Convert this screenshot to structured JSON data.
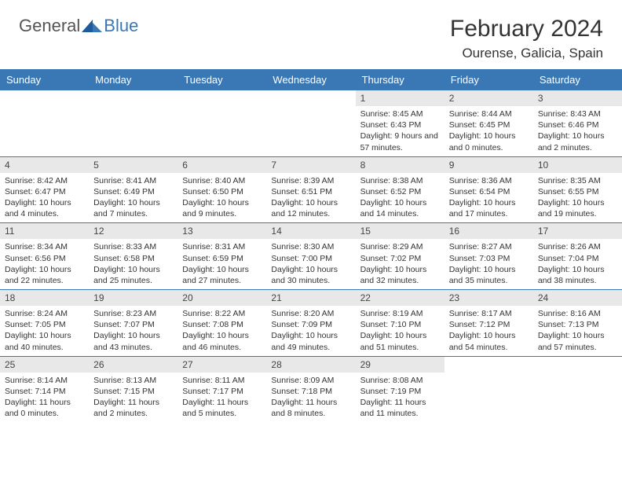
{
  "brand": {
    "part1": "General",
    "part2": "Blue"
  },
  "title": "February 2024",
  "location": "Ourense, Galicia, Spain",
  "colors": {
    "header_bg": "#3a78b5",
    "header_text": "#ffffff",
    "daynum_bg": "#e8e8e8",
    "text": "#333333",
    "border": "#3a78b5",
    "page_bg": "#ffffff"
  },
  "fonts": {
    "title_size": 30,
    "location_size": 17,
    "header_size": 13,
    "cell_size": 10.5
  },
  "weekdays": [
    "Sunday",
    "Monday",
    "Tuesday",
    "Wednesday",
    "Thursday",
    "Friday",
    "Saturday"
  ],
  "weeks": [
    [
      null,
      null,
      null,
      null,
      {
        "n": "1",
        "sr": "8:45 AM",
        "ss": "6:43 PM",
        "dl": "9 hours and 57 minutes."
      },
      {
        "n": "2",
        "sr": "8:44 AM",
        "ss": "6:45 PM",
        "dl": "10 hours and 0 minutes."
      },
      {
        "n": "3",
        "sr": "8:43 AM",
        "ss": "6:46 PM",
        "dl": "10 hours and 2 minutes."
      }
    ],
    [
      {
        "n": "4",
        "sr": "8:42 AM",
        "ss": "6:47 PM",
        "dl": "10 hours and 4 minutes."
      },
      {
        "n": "5",
        "sr": "8:41 AM",
        "ss": "6:49 PM",
        "dl": "10 hours and 7 minutes."
      },
      {
        "n": "6",
        "sr": "8:40 AM",
        "ss": "6:50 PM",
        "dl": "10 hours and 9 minutes."
      },
      {
        "n": "7",
        "sr": "8:39 AM",
        "ss": "6:51 PM",
        "dl": "10 hours and 12 minutes."
      },
      {
        "n": "8",
        "sr": "8:38 AM",
        "ss": "6:52 PM",
        "dl": "10 hours and 14 minutes."
      },
      {
        "n": "9",
        "sr": "8:36 AM",
        "ss": "6:54 PM",
        "dl": "10 hours and 17 minutes."
      },
      {
        "n": "10",
        "sr": "8:35 AM",
        "ss": "6:55 PM",
        "dl": "10 hours and 19 minutes."
      }
    ],
    [
      {
        "n": "11",
        "sr": "8:34 AM",
        "ss": "6:56 PM",
        "dl": "10 hours and 22 minutes."
      },
      {
        "n": "12",
        "sr": "8:33 AM",
        "ss": "6:58 PM",
        "dl": "10 hours and 25 minutes."
      },
      {
        "n": "13",
        "sr": "8:31 AM",
        "ss": "6:59 PM",
        "dl": "10 hours and 27 minutes."
      },
      {
        "n": "14",
        "sr": "8:30 AM",
        "ss": "7:00 PM",
        "dl": "10 hours and 30 minutes."
      },
      {
        "n": "15",
        "sr": "8:29 AM",
        "ss": "7:02 PM",
        "dl": "10 hours and 32 minutes."
      },
      {
        "n": "16",
        "sr": "8:27 AM",
        "ss": "7:03 PM",
        "dl": "10 hours and 35 minutes."
      },
      {
        "n": "17",
        "sr": "8:26 AM",
        "ss": "7:04 PM",
        "dl": "10 hours and 38 minutes."
      }
    ],
    [
      {
        "n": "18",
        "sr": "8:24 AM",
        "ss": "7:05 PM",
        "dl": "10 hours and 40 minutes."
      },
      {
        "n": "19",
        "sr": "8:23 AM",
        "ss": "7:07 PM",
        "dl": "10 hours and 43 minutes."
      },
      {
        "n": "20",
        "sr": "8:22 AM",
        "ss": "7:08 PM",
        "dl": "10 hours and 46 minutes."
      },
      {
        "n": "21",
        "sr": "8:20 AM",
        "ss": "7:09 PM",
        "dl": "10 hours and 49 minutes."
      },
      {
        "n": "22",
        "sr": "8:19 AM",
        "ss": "7:10 PM",
        "dl": "10 hours and 51 minutes."
      },
      {
        "n": "23",
        "sr": "8:17 AM",
        "ss": "7:12 PM",
        "dl": "10 hours and 54 minutes."
      },
      {
        "n": "24",
        "sr": "8:16 AM",
        "ss": "7:13 PM",
        "dl": "10 hours and 57 minutes."
      }
    ],
    [
      {
        "n": "25",
        "sr": "8:14 AM",
        "ss": "7:14 PM",
        "dl": "11 hours and 0 minutes."
      },
      {
        "n": "26",
        "sr": "8:13 AM",
        "ss": "7:15 PM",
        "dl": "11 hours and 2 minutes."
      },
      {
        "n": "27",
        "sr": "8:11 AM",
        "ss": "7:17 PM",
        "dl": "11 hours and 5 minutes."
      },
      {
        "n": "28",
        "sr": "8:09 AM",
        "ss": "7:18 PM",
        "dl": "11 hours and 8 minutes."
      },
      {
        "n": "29",
        "sr": "8:08 AM",
        "ss": "7:19 PM",
        "dl": "11 hours and 11 minutes."
      },
      null,
      null
    ]
  ],
  "labels": {
    "sunrise": "Sunrise:",
    "sunset": "Sunset:",
    "daylight": "Daylight:"
  }
}
